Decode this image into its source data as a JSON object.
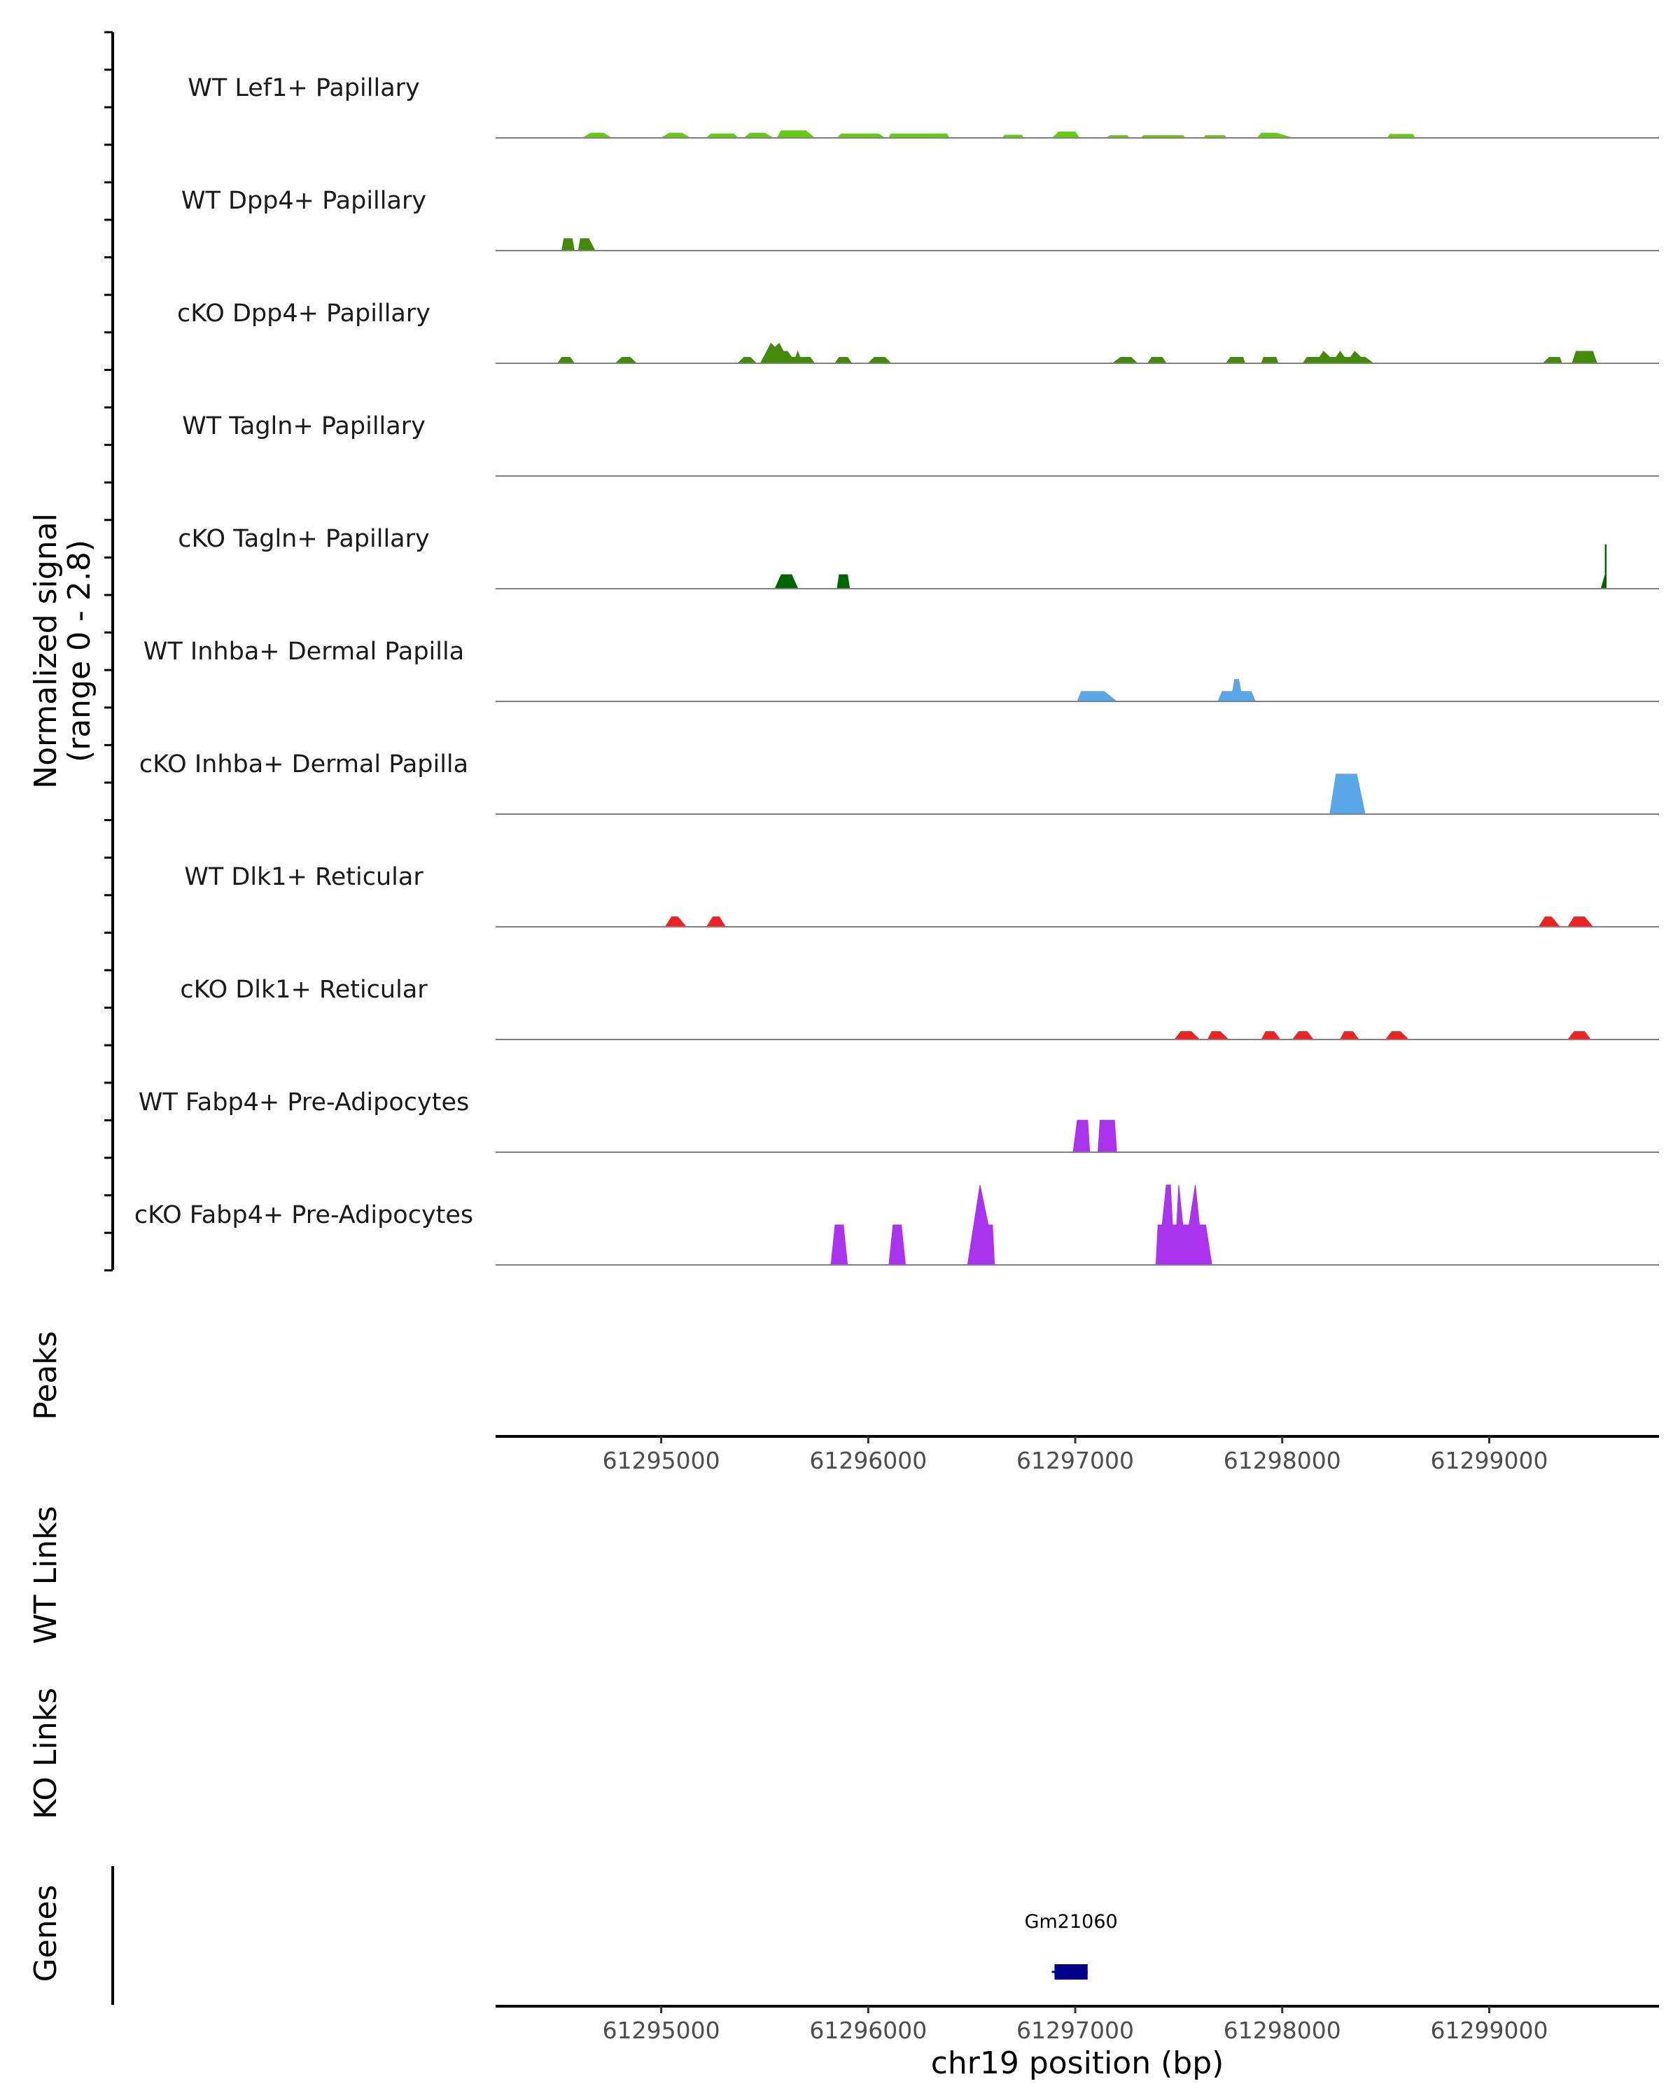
{
  "chart_data": {
    "type": "area",
    "title": "",
    "chromosome": "chr19",
    "xlabel": "chr19 position (bp)",
    "xlim": [
      61294200,
      61299820
    ],
    "x_ticks": [
      61295000,
      61296000,
      61297000,
      61298000,
      61299000
    ],
    "x_tick_labels": [
      "61295000",
      "61296000",
      "61297000",
      "61298000",
      "61299000"
    ],
    "ylabel_line1": "Normalized signal",
    "ylabel_line2": "(range 0 - 2.8)",
    "ylim": [
      0,
      2.8
    ],
    "panel_labels": {
      "peaks": "Peaks",
      "wt_links": "WT Links",
      "ko_links": "KO Links",
      "genes": "Genes"
    },
    "series": [
      {
        "name": "WT Lef1+ Papillary",
        "color": "#66cc11",
        "points": [
          [
            61294620,
            0
          ],
          [
            61294660,
            0.12
          ],
          [
            61294720,
            0.12
          ],
          [
            61294760,
            0
          ],
          [
            61295000,
            0
          ],
          [
            61295040,
            0.12
          ],
          [
            61295100,
            0.12
          ],
          [
            61295140,
            0
          ],
          [
            61295220,
            0
          ],
          [
            61295240,
            0.1
          ],
          [
            61295350,
            0.1
          ],
          [
            61295370,
            0
          ],
          [
            61295400,
            0
          ],
          [
            61295430,
            0.12
          ],
          [
            61295500,
            0.12
          ],
          [
            61295540,
            0
          ],
          [
            61295560,
            0
          ],
          [
            61295580,
            0.18
          ],
          [
            61295700,
            0.18
          ],
          [
            61295740,
            0
          ],
          [
            61295850,
            0
          ],
          [
            61295870,
            0.1
          ],
          [
            61296050,
            0.1
          ],
          [
            61296080,
            0
          ],
          [
            61296100,
            0
          ],
          [
            61296110,
            0.1
          ],
          [
            61296380,
            0.1
          ],
          [
            61296390,
            0
          ],
          [
            61296650,
            0
          ],
          [
            61296660,
            0.07
          ],
          [
            61296740,
            0.07
          ],
          [
            61296750,
            0
          ],
          [
            61296890,
            0
          ],
          [
            61296920,
            0.15
          ],
          [
            61297000,
            0.15
          ],
          [
            61297020,
            0
          ],
          [
            61297150,
            0
          ],
          [
            61297170,
            0.06
          ],
          [
            61297250,
            0.06
          ],
          [
            61297260,
            0
          ],
          [
            61297320,
            0
          ],
          [
            61297330,
            0.06
          ],
          [
            61297520,
            0.06
          ],
          [
            61297530,
            0
          ],
          [
            61297620,
            0
          ],
          [
            61297630,
            0.06
          ],
          [
            61297720,
            0.06
          ],
          [
            61297730,
            0
          ],
          [
            61297880,
            0
          ],
          [
            61297900,
            0.12
          ],
          [
            61297970,
            0.12
          ],
          [
            61298050,
            0
          ],
          [
            61298510,
            0
          ],
          [
            61298520,
            0.09
          ],
          [
            61298630,
            0.09
          ],
          [
            61298640,
            0
          ]
        ]
      },
      {
        "name": "WT Dpp4+ Papillary",
        "color": "#448a0a",
        "points": [
          [
            61294520,
            0
          ],
          [
            61294530,
            0.3
          ],
          [
            61294570,
            0.3
          ],
          [
            61294580,
            0
          ],
          [
            61294600,
            0
          ],
          [
            61294610,
            0.3
          ],
          [
            61294650,
            0.3
          ],
          [
            61294680,
            0
          ]
        ]
      },
      {
        "name": "cKO Dpp4+ Papillary",
        "color": "#448a0a",
        "points": [
          [
            61294500,
            0
          ],
          [
            61294520,
            0.15
          ],
          [
            61294560,
            0.15
          ],
          [
            61294580,
            0
          ],
          [
            61294780,
            0
          ],
          [
            61294810,
            0.15
          ],
          [
            61294850,
            0.15
          ],
          [
            61294880,
            0
          ],
          [
            61295370,
            0
          ],
          [
            61295400,
            0.15
          ],
          [
            61295430,
            0.15
          ],
          [
            61295460,
            0
          ],
          [
            61295480,
            0
          ],
          [
            61295510,
            0.3
          ],
          [
            61295530,
            0.5
          ],
          [
            61295550,
            0.4
          ],
          [
            61295570,
            0.5
          ],
          [
            61295590,
            0.3
          ],
          [
            61295610,
            0.3
          ],
          [
            61295630,
            0.15
          ],
          [
            61295650,
            0.15
          ],
          [
            61295660,
            0.3
          ],
          [
            61295670,
            0.15
          ],
          [
            61295720,
            0.15
          ],
          [
            61295740,
            0
          ],
          [
            61295840,
            0
          ],
          [
            61295860,
            0.15
          ],
          [
            61295900,
            0.15
          ],
          [
            61295920,
            0
          ],
          [
            61296000,
            0
          ],
          [
            61296030,
            0.15
          ],
          [
            61296080,
            0.15
          ],
          [
            61296110,
            0
          ],
          [
            61297180,
            0
          ],
          [
            61297220,
            0.15
          ],
          [
            61297270,
            0.15
          ],
          [
            61297300,
            0
          ],
          [
            61297350,
            0
          ],
          [
            61297370,
            0.15
          ],
          [
            61297420,
            0.15
          ],
          [
            61297440,
            0
          ],
          [
            61297730,
            0
          ],
          [
            61297750,
            0.15
          ],
          [
            61297810,
            0.15
          ],
          [
            61297820,
            0
          ],
          [
            61297900,
            0
          ],
          [
            61297910,
            0.15
          ],
          [
            61297970,
            0.15
          ],
          [
            61297980,
            0
          ],
          [
            61298100,
            0
          ],
          [
            61298120,
            0.15
          ],
          [
            61298180,
            0.15
          ],
          [
            61298200,
            0.3
          ],
          [
            61298230,
            0.15
          ],
          [
            61298260,
            0.15
          ],
          [
            61298280,
            0.3
          ],
          [
            61298300,
            0.15
          ],
          [
            61298330,
            0.15
          ],
          [
            61298350,
            0.3
          ],
          [
            61298380,
            0.15
          ],
          [
            61298400,
            0.15
          ],
          [
            61298440,
            0
          ],
          [
            61299260,
            0
          ],
          [
            61299290,
            0.15
          ],
          [
            61299340,
            0.15
          ],
          [
            61299350,
            0
          ],
          [
            61299400,
            0
          ],
          [
            61299420,
            0.3
          ],
          [
            61299500,
            0.3
          ],
          [
            61299520,
            0
          ]
        ]
      },
      {
        "name": "WT Tagln+ Papillary",
        "color": "#006400",
        "points": []
      },
      {
        "name": "cKO Tagln+ Papillary",
        "color": "#006400",
        "points": [
          [
            61295550,
            0
          ],
          [
            61295580,
            0.35
          ],
          [
            61295630,
            0.35
          ],
          [
            61295660,
            0
          ],
          [
            61295850,
            0
          ],
          [
            61295860,
            0.35
          ],
          [
            61295900,
            0.35
          ],
          [
            61295910,
            0
          ],
          [
            61299540,
            0
          ],
          [
            61299560,
            0.35
          ],
          [
            61299560,
            1.1
          ],
          [
            61299565,
            1.1
          ],
          [
            61299565,
            0
          ]
        ]
      },
      {
        "name": "WT Inhba+ Dermal Papilla",
        "color": "#5aa7e8",
        "points": [
          [
            61297010,
            0
          ],
          [
            61297030,
            0.25
          ],
          [
            61297140,
            0.25
          ],
          [
            61297200,
            0
          ],
          [
            61297690,
            0
          ],
          [
            61297710,
            0.25
          ],
          [
            61297760,
            0.25
          ],
          [
            61297770,
            0.55
          ],
          [
            61297790,
            0.55
          ],
          [
            61297800,
            0.25
          ],
          [
            61297850,
            0.25
          ],
          [
            61297870,
            0
          ]
        ]
      },
      {
        "name": "cKO Inhba+ Dermal Papilla",
        "color": "#5aa7e8",
        "points": [
          [
            61298230,
            0
          ],
          [
            61298260,
            1.0
          ],
          [
            61298360,
            1.0
          ],
          [
            61298400,
            0
          ]
        ]
      },
      {
        "name": "WT Dlk1+ Reticular",
        "color": "#ee2222",
        "points": [
          [
            61295020,
            0
          ],
          [
            61295050,
            0.25
          ],
          [
            61295080,
            0.25
          ],
          [
            61295120,
            0
          ],
          [
            61295220,
            0
          ],
          [
            61295250,
            0.25
          ],
          [
            61295280,
            0.25
          ],
          [
            61295310,
            0
          ],
          [
            61299240,
            0
          ],
          [
            61299270,
            0.25
          ],
          [
            61299300,
            0.25
          ],
          [
            61299340,
            0
          ],
          [
            61299380,
            0
          ],
          [
            61299410,
            0.25
          ],
          [
            61299460,
            0.25
          ],
          [
            61299500,
            0
          ]
        ]
      },
      {
        "name": "cKO Dlk1+ Reticular",
        "color": "#ee2222",
        "points": [
          [
            61297480,
            0
          ],
          [
            61297510,
            0.2
          ],
          [
            61297560,
            0.2
          ],
          [
            61297600,
            0
          ],
          [
            61297640,
            0
          ],
          [
            61297660,
            0.2
          ],
          [
            61297700,
            0.2
          ],
          [
            61297740,
            0
          ],
          [
            61297900,
            0
          ],
          [
            61297920,
            0.2
          ],
          [
            61297960,
            0.2
          ],
          [
            61297990,
            0
          ],
          [
            61298050,
            0
          ],
          [
            61298080,
            0.2
          ],
          [
            61298120,
            0.2
          ],
          [
            61298150,
            0
          ],
          [
            61298280,
            0
          ],
          [
            61298300,
            0.2
          ],
          [
            61298340,
            0.2
          ],
          [
            61298370,
            0
          ],
          [
            61298500,
            0
          ],
          [
            61298530,
            0.2
          ],
          [
            61298570,
            0.2
          ],
          [
            61298610,
            0
          ],
          [
            61299380,
            0
          ],
          [
            61299410,
            0.2
          ],
          [
            61299460,
            0.2
          ],
          [
            61299490,
            0
          ]
        ]
      },
      {
        "name": "WT Fabp4+ Pre-Adipocytes",
        "color": "#aa33ee",
        "points": [
          [
            61296990,
            0
          ],
          [
            61297010,
            0.8
          ],
          [
            61297060,
            0.8
          ],
          [
            61297070,
            0
          ],
          [
            61297110,
            0
          ],
          [
            61297120,
            0.8
          ],
          [
            61297190,
            0.8
          ],
          [
            61297200,
            0
          ]
        ]
      },
      {
        "name": "cKO Fabp4+ Pre-Adipocytes",
        "color": "#aa33ee",
        "points": [
          [
            61295820,
            0
          ],
          [
            61295840,
            1.0
          ],
          [
            61295880,
            1.0
          ],
          [
            61295900,
            0
          ],
          [
            61296100,
            0
          ],
          [
            61296120,
            1.0
          ],
          [
            61296160,
            1.0
          ],
          [
            61296180,
            0
          ],
          [
            61296480,
            0
          ],
          [
            61296540,
            2.0
          ],
          [
            61296580,
            1.0
          ],
          [
            61296600,
            1.0
          ],
          [
            61296610,
            0
          ],
          [
            61297390,
            0
          ],
          [
            61297400,
            1.0
          ],
          [
            61297420,
            1.0
          ],
          [
            61297440,
            2.0
          ],
          [
            61297460,
            2.0
          ],
          [
            61297470,
            1.0
          ],
          [
            61297490,
            1.0
          ],
          [
            61297500,
            2.0
          ],
          [
            61297520,
            1.0
          ],
          [
            61297550,
            1.0
          ],
          [
            61297580,
            2.0
          ],
          [
            61297600,
            1.0
          ],
          [
            61297630,
            1.0
          ],
          [
            61297660,
            0
          ]
        ]
      }
    ],
    "genes": [
      {
        "name": "Gm21060",
        "start": 61296900,
        "end": 61297060,
        "color": "#00008b"
      }
    ]
  }
}
